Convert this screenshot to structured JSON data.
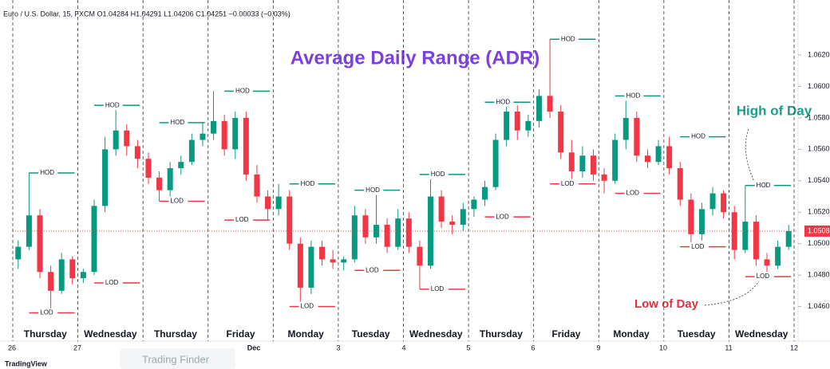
{
  "chart_data": {
    "type": "candlestick",
    "title": "Average Daily Range (ADR)",
    "header": "Euro / U.S. Dollar, 15, FXCM O1.04284 H1.04291 L1.04206 C1.04251 −0.00033 (−0.03%)",
    "high_annotation": "High of Day",
    "low_annotation": "Low of Day",
    "hod_label": "HOD",
    "lod_label": "LOD",
    "up_color": "#089981",
    "down_color": "#f23645",
    "ylim": [
      1.0438,
      1.0655
    ],
    "yticks": [
      {
        "value": 1.046,
        "label": "1.0460"
      },
      {
        "value": 1.048,
        "label": "1.0480"
      },
      {
        "value": 1.05,
        "label": "1.0500"
      },
      {
        "value": 1.052,
        "label": "1.0520"
      },
      {
        "value": 1.054,
        "label": "1.0540"
      },
      {
        "value": 1.056,
        "label": "1.0560"
      },
      {
        "value": 1.058,
        "label": "1.0580"
      },
      {
        "value": 1.06,
        "label": "1.0600"
      },
      {
        "value": 1.062,
        "label": "1.0620"
      }
    ],
    "last_price": {
      "value": 1.0508,
      "label": "1.0508"
    },
    "date_labels": [
      "26",
      "27",
      "Dec",
      "3",
      "4",
      "5",
      "6",
      "9",
      "10",
      "11",
      "12"
    ],
    "brand": "TradingView",
    "watermark": "Trading Finder",
    "days": [
      {
        "name": "Thursday",
        "hod": 1.0545,
        "lod": 1.0456,
        "candles": [
          [
            1.049,
            1.0502,
            1.0484,
            1.0498
          ],
          [
            1.0498,
            1.0545,
            1.0496,
            1.0518
          ],
          [
            1.0518,
            1.0522,
            1.0478,
            1.0482
          ],
          [
            1.0482,
            1.0486,
            1.0456,
            1.047
          ],
          [
            1.047,
            1.0494,
            1.0468,
            1.049
          ],
          [
            1.049,
            1.0492,
            1.0474,
            1.0478
          ]
        ]
      },
      {
        "name": "Wednesday",
        "hod": 1.0588,
        "lod": 1.0475,
        "candles": [
          [
            1.0478,
            1.0484,
            1.0475,
            1.0482
          ],
          [
            1.0482,
            1.0528,
            1.048,
            1.0524
          ],
          [
            1.0524,
            1.0568,
            1.052,
            1.056
          ],
          [
            1.056,
            1.0588,
            1.0556,
            1.0572
          ],
          [
            1.0572,
            1.0576,
            1.0556,
            1.0562
          ],
          [
            1.0562,
            1.0566,
            1.0548,
            1.0554
          ]
        ]
      },
      {
        "name": "Thursday",
        "hod": 1.0577,
        "lod": 1.0527,
        "candles": [
          [
            1.0554,
            1.0558,
            1.0538,
            1.0542
          ],
          [
            1.0542,
            1.0546,
            1.0527,
            1.0534
          ],
          [
            1.0534,
            1.0552,
            1.053,
            1.0548
          ],
          [
            1.0548,
            1.0556,
            1.0544,
            1.0552
          ],
          [
            1.0552,
            1.057,
            1.055,
            1.0566
          ],
          [
            1.0566,
            1.0577,
            1.0562,
            1.057
          ]
        ]
      },
      {
        "name": "Friday",
        "hod": 1.0597,
        "lod": 1.0515,
        "candles": [
          [
            1.057,
            1.0597,
            1.0566,
            1.0578
          ],
          [
            1.0578,
            1.0582,
            1.0556,
            1.056
          ],
          [
            1.056,
            1.0584,
            1.0554,
            1.058
          ],
          [
            1.058,
            1.0584,
            1.054,
            1.0544
          ],
          [
            1.0544,
            1.055,
            1.0526,
            1.053
          ],
          [
            1.053,
            1.0534,
            1.0515,
            1.0522
          ]
        ]
      },
      {
        "name": "Monday",
        "hod": 1.0538,
        "lod": 1.046,
        "candles": [
          [
            1.0522,
            1.0538,
            1.0518,
            1.053
          ],
          [
            1.053,
            1.0534,
            1.0496,
            1.05
          ],
          [
            1.05,
            1.0504,
            1.046,
            1.0472
          ],
          [
            1.0472,
            1.0502,
            1.0468,
            1.0498
          ],
          [
            1.0498,
            1.0502,
            1.0486,
            1.049
          ],
          [
            1.049,
            1.0496,
            1.0484,
            1.0488
          ]
        ]
      },
      {
        "name": "Tuesday",
        "hod": 1.0534,
        "lod": 1.0483,
        "candles": [
          [
            1.0488,
            1.0492,
            1.0483,
            1.049
          ],
          [
            1.049,
            1.0524,
            1.0488,
            1.0518
          ],
          [
            1.0518,
            1.0522,
            1.05,
            1.0504
          ],
          [
            1.0504,
            1.0534,
            1.05,
            1.0512
          ],
          [
            1.0512,
            1.0516,
            1.0494,
            1.0498
          ],
          [
            1.0498,
            1.0522,
            1.0496,
            1.0516
          ]
        ]
      },
      {
        "name": "Wednesday",
        "hod": 1.0544,
        "lod": 1.0471,
        "candles": [
          [
            1.0516,
            1.052,
            1.0494,
            1.0498
          ],
          [
            1.0498,
            1.0502,
            1.0471,
            1.0486
          ],
          [
            1.0486,
            1.0544,
            1.0484,
            1.053
          ],
          [
            1.053,
            1.0534,
            1.051,
            1.0514
          ],
          [
            1.0514,
            1.0518,
            1.0506,
            1.0512
          ],
          [
            1.0512,
            1.0526,
            1.0508,
            1.0522
          ]
        ]
      },
      {
        "name": "Thursday",
        "hod": 1.059,
        "lod": 1.0517,
        "candles": [
          [
            1.0522,
            1.053,
            1.0517,
            1.0528
          ],
          [
            1.0528,
            1.054,
            1.0524,
            1.0536
          ],
          [
            1.0536,
            1.057,
            1.0534,
            1.0566
          ],
          [
            1.0566,
            1.059,
            1.0562,
            1.0584
          ],
          [
            1.0584,
            1.0588,
            1.0566,
            1.0572
          ],
          [
            1.0572,
            1.0582,
            1.0568,
            1.0578
          ]
        ]
      },
      {
        "name": "Friday",
        "hod": 1.063,
        "lod": 1.0538,
        "candles": [
          [
            1.0578,
            1.0598,
            1.0574,
            1.0594
          ],
          [
            1.0594,
            1.063,
            1.058,
            1.0584
          ],
          [
            1.0584,
            1.0588,
            1.0554,
            1.0558
          ],
          [
            1.0558,
            1.0566,
            1.0538,
            1.0546
          ],
          [
            1.0546,
            1.0562,
            1.0542,
            1.0556
          ],
          [
            1.0556,
            1.056,
            1.054,
            1.0544
          ]
        ]
      },
      {
        "name": "Monday",
        "hod": 1.0594,
        "lod": 1.0532,
        "candles": [
          [
            1.0544,
            1.0548,
            1.0532,
            1.054
          ],
          [
            1.054,
            1.057,
            1.0538,
            1.0566
          ],
          [
            1.0566,
            1.0594,
            1.056,
            1.058
          ],
          [
            1.058,
            1.0584,
            1.0552,
            1.0556
          ],
          [
            1.0556,
            1.056,
            1.0548,
            1.0552
          ],
          [
            1.0552,
            1.0566,
            1.055,
            1.0562
          ]
        ]
      },
      {
        "name": "Tuesday",
        "hod": 1.0568,
        "lod": 1.0498,
        "candles": [
          [
            1.0562,
            1.0568,
            1.0544,
            1.0548
          ],
          [
            1.0548,
            1.0552,
            1.0524,
            1.0528
          ],
          [
            1.0528,
            1.0532,
            1.0498,
            1.0506
          ],
          [
            1.0506,
            1.0526,
            1.0502,
            1.0522
          ],
          [
            1.0522,
            1.0536,
            1.0518,
            1.0532
          ],
          [
            1.0532,
            1.0534,
            1.0516,
            1.052
          ]
        ]
      },
      {
        "name": "Wednesday",
        "hod": 1.0537,
        "lod": 1.0479,
        "candles": [
          [
            1.052,
            1.0524,
            1.049,
            1.0496
          ],
          [
            1.0496,
            1.0537,
            1.0494,
            1.0514
          ],
          [
            1.0514,
            1.0518,
            1.0486,
            1.049
          ],
          [
            1.049,
            1.0494,
            1.0479,
            1.0486
          ],
          [
            1.0486,
            1.0502,
            1.0484,
            1.0498
          ],
          [
            1.0498,
            1.0512,
            1.0496,
            1.0508
          ]
        ]
      }
    ]
  }
}
